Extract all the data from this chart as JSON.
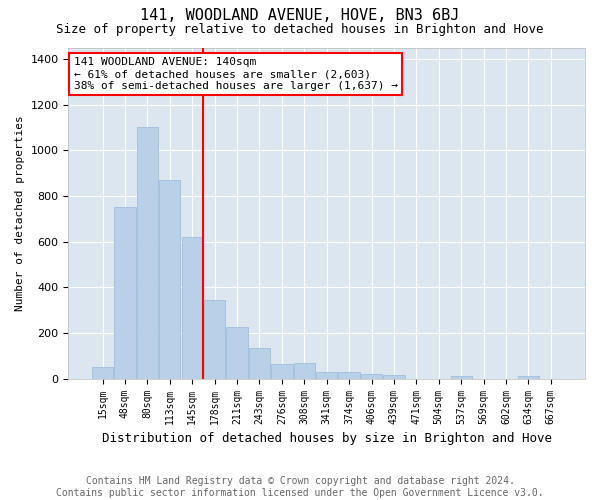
{
  "title": "141, WOODLAND AVENUE, HOVE, BN3 6BJ",
  "subtitle": "Size of property relative to detached houses in Brighton and Hove",
  "xlabel": "Distribution of detached houses by size in Brighton and Hove",
  "ylabel": "Number of detached properties",
  "footer_line1": "Contains HM Land Registry data © Crown copyright and database right 2024.",
  "footer_line2": "Contains public sector information licensed under the Open Government Licence v3.0.",
  "categories": [
    "15sqm",
    "48sqm",
    "80sqm",
    "113sqm",
    "145sqm",
    "178sqm",
    "211sqm",
    "243sqm",
    "276sqm",
    "308sqm",
    "341sqm",
    "374sqm",
    "406sqm",
    "439sqm",
    "471sqm",
    "504sqm",
    "537sqm",
    "569sqm",
    "602sqm",
    "634sqm",
    "667sqm"
  ],
  "values": [
    50,
    750,
    1100,
    870,
    620,
    345,
    225,
    135,
    65,
    70,
    30,
    30,
    22,
    15,
    0,
    0,
    12,
    0,
    0,
    12,
    0
  ],
  "bar_color": "#b8d0e8",
  "bar_edge_color": "#9ab8d8",
  "annotation_line1": "141 WOODLAND AVENUE: 140sqm",
  "annotation_line2": "← 61% of detached houses are smaller (2,603)",
  "annotation_line3": "38% of semi-detached houses are larger (1,637) →",
  "annotation_box_facecolor": "white",
  "annotation_box_edgecolor": "red",
  "vline_color": "red",
  "vline_x": 4.5,
  "ylim": [
    0,
    1450
  ],
  "yticks": [
    0,
    200,
    400,
    600,
    800,
    1000,
    1200,
    1400
  ],
  "plot_bg_color": "#dce6f0",
  "fig_bg_color": "#ffffff",
  "grid_color": "white",
  "title_fontsize": 11,
  "subtitle_fontsize": 9,
  "ylabel_fontsize": 8,
  "xlabel_fontsize": 9,
  "tick_fontsize": 7,
  "footer_fontsize": 7,
  "annotation_fontsize": 8,
  "figsize": [
    6.0,
    5.0
  ],
  "dpi": 100
}
